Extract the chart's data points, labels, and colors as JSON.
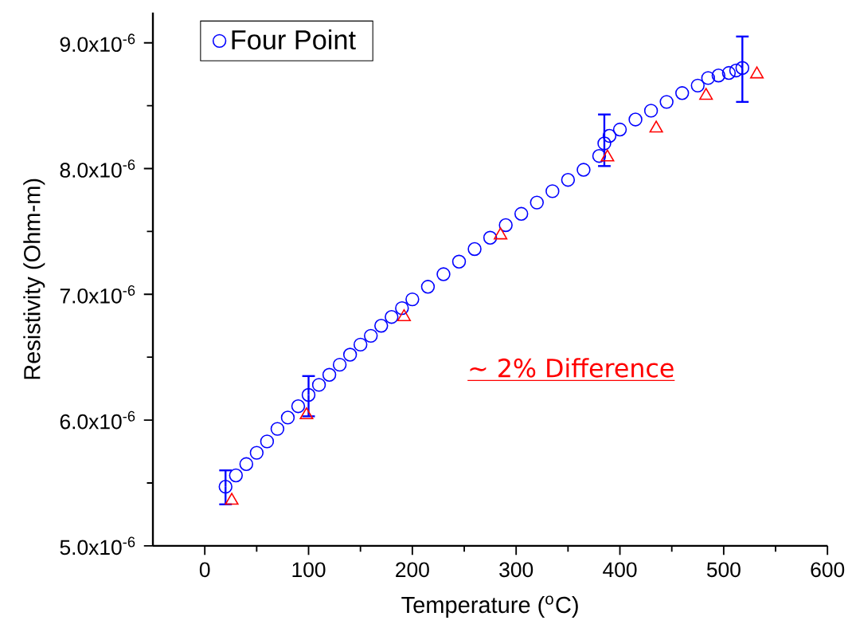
{
  "chart_data": {
    "type": "scatter",
    "xlabel": "Temperature ($^{o}$C)",
    "ylabel": "Resistivity (Ohm-m)",
    "xlim": [
      -50,
      600
    ],
    "xticks": [
      0,
      100,
      200,
      300,
      400,
      500,
      600
    ],
    "ylim": [
      5e-06,
      9.24e-06
    ],
    "yticks": [
      {
        "value": 5e-06,
        "label": "5.0x10$^{-6}$"
      },
      {
        "value": 6e-06,
        "label": "6.0x10$^{-6}$"
      },
      {
        "value": 7e-06,
        "label": "7.0x10$^{-6}$"
      },
      {
        "value": 8e-06,
        "label": "8.0x10$^{-6}$"
      },
      {
        "value": 9e-06,
        "label": "9.0x10$^{-6}$"
      }
    ],
    "grid": false,
    "legend": "top left",
    "annotations": [
      "~ 2% Difference"
    ],
    "series": [
      {
        "name": "Four Point",
        "color": "#0000ff",
        "marker": "circle",
        "x": [
          20,
          30,
          40,
          50,
          60,
          70,
          80,
          90,
          100,
          110,
          120,
          130,
          140,
          150,
          160,
          170,
          180,
          190,
          200,
          215,
          230,
          245,
          260,
          275,
          290,
          305,
          320,
          335,
          350,
          365,
          380,
          385,
          390,
          400,
          415,
          430,
          445,
          460,
          475,
          485,
          495,
          505,
          512,
          518
        ],
        "values": [
          5.47e-06,
          5.56e-06,
          5.65e-06,
          5.74e-06,
          5.83e-06,
          5.93e-06,
          6.02e-06,
          6.11e-06,
          6.2e-06,
          6.28e-06,
          6.36e-06,
          6.44e-06,
          6.52e-06,
          6.6e-06,
          6.67e-06,
          6.75e-06,
          6.82e-06,
          6.89e-06,
          6.96e-06,
          7.06e-06,
          7.16e-06,
          7.26e-06,
          7.36e-06,
          7.45e-06,
          7.55e-06,
          7.64e-06,
          7.73e-06,
          7.82e-06,
          7.91e-06,
          7.99e-06,
          8.1e-06,
          8.2e-06,
          8.26e-06,
          8.31e-06,
          8.39e-06,
          8.46e-06,
          8.53e-06,
          8.6e-06,
          8.66e-06,
          8.72e-06,
          8.74e-06,
          8.76e-06,
          8.78e-06,
          8.8e-06
        ],
        "errors": [
          [
            5.33e-06,
            5.6e-06
          ],
          null,
          null,
          null,
          null,
          null,
          null,
          null,
          [
            6.03e-06,
            6.35e-06
          ],
          null,
          null,
          null,
          null,
          null,
          null,
          null,
          null,
          null,
          null,
          null,
          null,
          null,
          null,
          null,
          null,
          null,
          null,
          null,
          null,
          null,
          null,
          [
            8.02e-06,
            8.43e-06
          ],
          null,
          null,
          null,
          null,
          null,
          null,
          null,
          null,
          null,
          null,
          null,
          [
            8.53e-06,
            9.05e-06
          ]
        ]
      },
      {
        "color": "#ff0000",
        "marker": "triangle",
        "x": [
          26,
          98,
          192,
          285,
          388,
          435,
          483,
          532
        ],
        "values": [
          5.36e-06,
          6.04e-06,
          6.82e-06,
          7.47e-06,
          8.09e-06,
          8.32e-06,
          8.58e-06,
          8.75e-06
        ]
      }
    ]
  }
}
